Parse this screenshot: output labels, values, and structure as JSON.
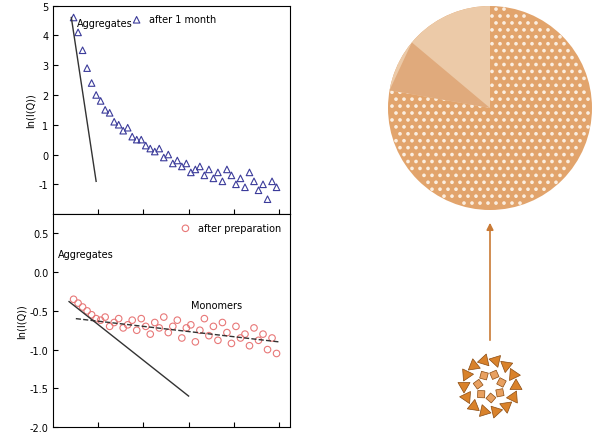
{
  "chart_data": [
    {
      "type": "scatter",
      "y_label": "ln(I(Q))",
      "xlim": [
        0,
        1.05
      ],
      "xticks": [
        0.2,
        0.4,
        0.6,
        0.8,
        1.0
      ],
      "ylim": [
        -2,
        5
      ],
      "yticks": [
        -1,
        0,
        1,
        2,
        3,
        4,
        5
      ],
      "tick_labels": "y",
      "legend": "upper center",
      "annotations": [
        "Aggregates"
      ],
      "series": [
        {
          "name": "after 1 month",
          "color": "#3b3b9a",
          "marker": "triangle",
          "x": [
            0.09,
            0.11,
            0.13,
            0.15,
            0.17,
            0.19,
            0.21,
            0.23,
            0.25,
            0.27,
            0.29,
            0.31,
            0.33,
            0.35,
            0.37,
            0.39,
            0.41,
            0.43,
            0.45,
            0.47,
            0.49,
            0.51,
            0.53,
            0.55,
            0.57,
            0.59,
            0.61,
            0.63,
            0.65,
            0.67,
            0.69,
            0.71,
            0.73,
            0.75,
            0.77,
            0.79,
            0.81,
            0.83,
            0.85,
            0.87,
            0.89,
            0.91,
            0.93,
            0.95,
            0.97,
            0.99
          ],
          "values": [
            4.6,
            4.1,
            3.5,
            2.9,
            2.4,
            2.0,
            1.8,
            1.5,
            1.4,
            1.1,
            1.0,
            0.8,
            0.9,
            0.6,
            0.5,
            0.5,
            0.3,
            0.2,
            0.1,
            0.2,
            -0.1,
            0.0,
            -0.3,
            -0.2,
            -0.4,
            -0.3,
            -0.6,
            -0.5,
            -0.4,
            -0.7,
            -0.5,
            -0.8,
            -0.6,
            -0.9,
            -0.5,
            -0.7,
            -1.0,
            -0.8,
            -1.1,
            -0.6,
            -0.9,
            -1.2,
            -1.0,
            -1.5,
            -0.9,
            -1.1
          ]
        },
        {
          "type": "line",
          "color": "#333333",
          "line_style": "solid",
          "x": [
            0.08,
            0.19
          ],
          "values": [
            4.6,
            -0.9
          ]
        }
      ]
    },
    {
      "type": "scatter",
      "y_label": "ln(I(Q))",
      "xlim": [
        0,
        1.05
      ],
      "xticks": [
        0.2,
        0.4,
        0.6,
        0.8,
        1.0
      ],
      "ylim": [
        -2.0,
        0.75
      ],
      "yticks": [
        -2.0,
        -1.5,
        -1.0,
        -0.5,
        0.0,
        0.5
      ],
      "tick_labels": "y",
      "legend": "upper right",
      "annotations": [
        "Aggregates",
        "Monomers"
      ],
      "series": [
        {
          "name": "after preparation",
          "color": "#e87878",
          "marker": "circle",
          "x": [
            0.09,
            0.11,
            0.13,
            0.15,
            0.17,
            0.19,
            0.21,
            0.23,
            0.25,
            0.27,
            0.29,
            0.31,
            0.33,
            0.35,
            0.37,
            0.39,
            0.41,
            0.43,
            0.45,
            0.47,
            0.49,
            0.51,
            0.53,
            0.55,
            0.57,
            0.59,
            0.61,
            0.63,
            0.65,
            0.67,
            0.69,
            0.71,
            0.73,
            0.75,
            0.77,
            0.79,
            0.81,
            0.83,
            0.85,
            0.87,
            0.89,
            0.91,
            0.93,
            0.95,
            0.97,
            0.99
          ],
          "values": [
            -0.35,
            -0.4,
            -0.45,
            -0.5,
            -0.55,
            -0.6,
            -0.62,
            -0.58,
            -0.7,
            -0.65,
            -0.6,
            -0.72,
            -0.68,
            -0.62,
            -0.75,
            -0.6,
            -0.7,
            -0.8,
            -0.65,
            -0.72,
            -0.58,
            -0.78,
            -0.7,
            -0.62,
            -0.85,
            -0.72,
            -0.68,
            -0.9,
            -0.75,
            -0.6,
            -0.82,
            -0.7,
            -0.88,
            -0.65,
            -0.78,
            -0.92,
            -0.7,
            -0.85,
            -0.8,
            -0.95,
            -0.72,
            -0.88,
            -0.8,
            -1.0,
            -0.85,
            -1.05
          ]
        },
        {
          "type": "line",
          "color": "#333333",
          "line_style": "solid",
          "x": [
            0.07,
            0.6
          ],
          "values": [
            -0.38,
            -1.6
          ]
        },
        {
          "type": "line",
          "color": "#333333",
          "line_style": "dashed",
          "x": [
            0.1,
            1.0
          ],
          "values": [
            -0.6,
            -0.9
          ]
        }
      ]
    }
  ]
}
